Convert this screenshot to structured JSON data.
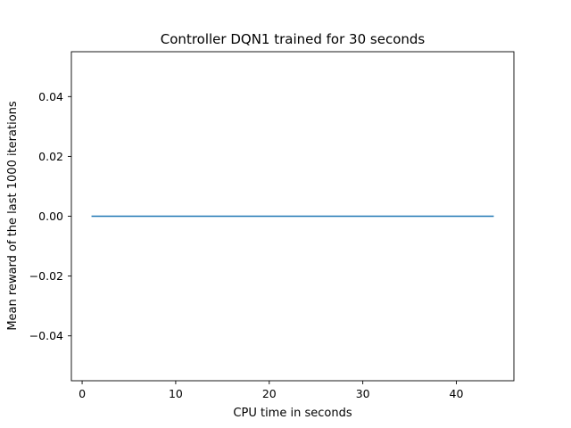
{
  "chart_data": {
    "type": "line",
    "title": "Controller DQN1 trained for 30 seconds",
    "xlabel": "CPU time in seconds",
    "ylabel": "Mean reward of the last 1000 iterations",
    "xlim": [
      -1.15,
      46.15
    ],
    "ylim": [
      -0.055,
      0.055
    ],
    "xticks": [
      0,
      10,
      20,
      30,
      40
    ],
    "yticks": [
      -0.04,
      -0.02,
      0.0,
      0.02,
      0.04
    ],
    "xtick_labels": [
      "0",
      "10",
      "20",
      "30",
      "40"
    ],
    "ytick_labels": [
      "−0.04",
      "−0.02",
      "0.00",
      "0.02",
      "0.04"
    ],
    "grid": false,
    "series": [
      {
        "color": "#1f77b4",
        "x": [
          1,
          44
        ],
        "y": [
          0.0,
          0.0
        ]
      }
    ]
  }
}
